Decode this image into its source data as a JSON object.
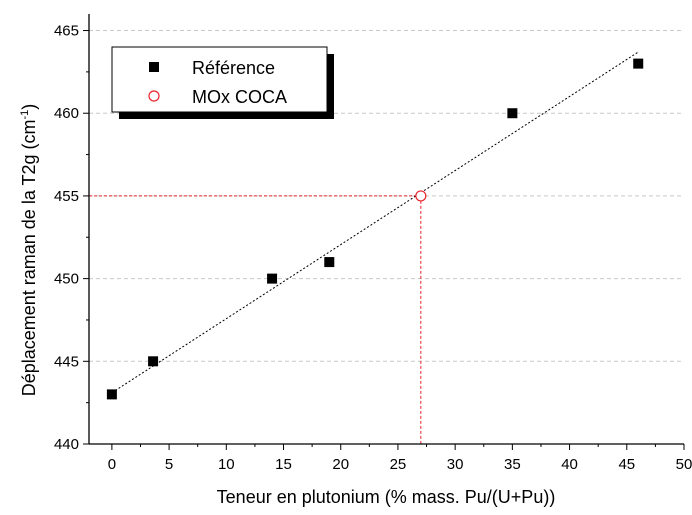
{
  "chart_data": {
    "type": "scatter",
    "xlabel": "Teneur en plutonium (% mass. Pu/(U+Pu))",
    "ylabel": "Déplacement raman de la T2g (cm",
    "ylabel_sup": "-1",
    "ylabel_close": ")",
    "xlim": [
      -2,
      50
    ],
    "ylim": [
      440,
      466
    ],
    "x_ticks": [
      0,
      5,
      10,
      15,
      20,
      25,
      30,
      35,
      40,
      45,
      50
    ],
    "y_ticks": [
      440,
      445,
      450,
      455,
      460,
      465
    ],
    "grid": "horizontal-dashed",
    "legend_position": "top-left",
    "series": [
      {
        "name": "Référence",
        "marker": "filled-square",
        "color": "#000000",
        "points": [
          {
            "x": 0,
            "y": 443
          },
          {
            "x": 3.6,
            "y": 445
          },
          {
            "x": 14,
            "y": 450
          },
          {
            "x": 19,
            "y": 451
          },
          {
            "x": 35,
            "y": 460
          },
          {
            "x": 46,
            "y": 463
          }
        ]
      },
      {
        "name": "MOx COCA",
        "marker": "open-circle",
        "color": "#e8262b",
        "points": [
          {
            "x": 27,
            "y": 455
          }
        ]
      }
    ],
    "fit_line": {
      "style": "dotted",
      "color": "#000000",
      "from": {
        "x": 0,
        "y": 443.1
      },
      "to": {
        "x": 46,
        "y": 463.7
      }
    },
    "guide_lines": {
      "style": "dotted",
      "color": "#e8262b",
      "x": 27,
      "y": 455
    }
  }
}
